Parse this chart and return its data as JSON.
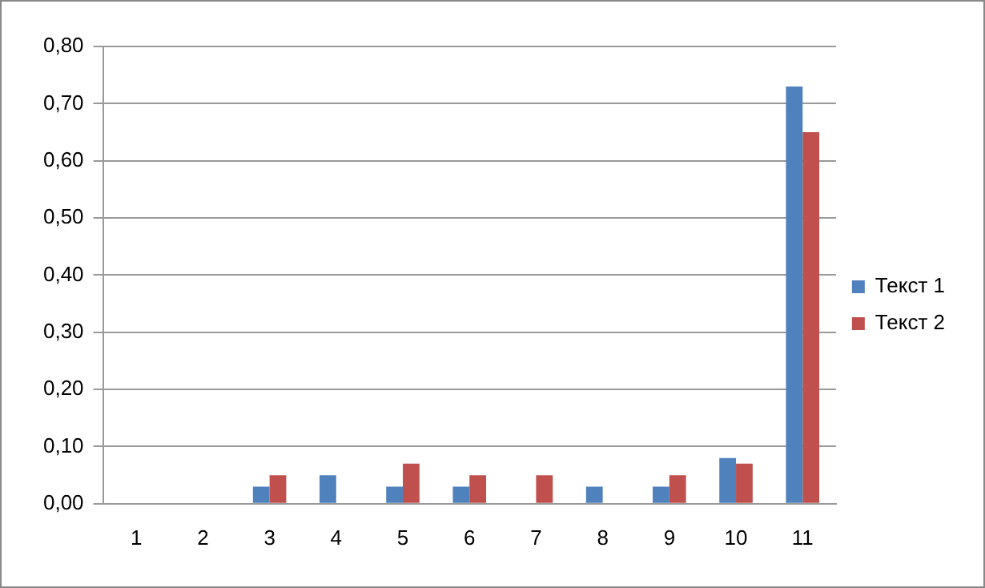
{
  "chart_data": {
    "type": "bar",
    "categories": [
      "1",
      "2",
      "3",
      "4",
      "5",
      "6",
      "7",
      "8",
      "9",
      "10",
      "11"
    ],
    "series": [
      {
        "name": "Текст 1",
        "color": "#4f81bd",
        "values": [
          0,
          0,
          0.03,
          0.05,
          0.03,
          0.03,
          0,
          0.03,
          0.03,
          0.08,
          0.73
        ]
      },
      {
        "name": "Текст 2",
        "color": "#c0504d",
        "values": [
          0,
          0,
          0.05,
          0,
          0.07,
          0.05,
          0.05,
          0,
          0.05,
          0.07,
          0.65
        ]
      }
    ],
    "ylim": [
      0,
      0.8
    ],
    "yticks": [
      {
        "value": 0,
        "label": "0,00"
      },
      {
        "value": 0.1,
        "label": "0,10"
      },
      {
        "value": 0.2,
        "label": "0,20"
      },
      {
        "value": 0.3,
        "label": "0,30"
      },
      {
        "value": 0.4,
        "label": "0,40"
      },
      {
        "value": 0.5,
        "label": "0,50"
      },
      {
        "value": 0.6,
        "label": "0,60"
      },
      {
        "value": 0.7,
        "label": "0,70"
      },
      {
        "value": 0.8,
        "label": "0,80"
      }
    ],
    "grid": "y",
    "legend": "right"
  }
}
